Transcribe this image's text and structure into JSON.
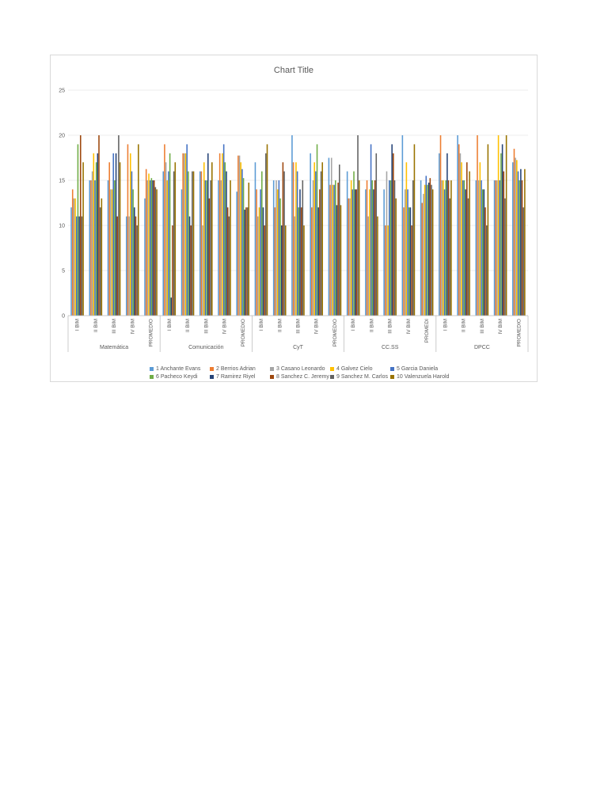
{
  "chart_data": {
    "type": "bar",
    "title": "Chart Title",
    "ylim": [
      0,
      25
    ],
    "yticks": [
      0,
      5,
      10,
      15,
      20,
      25
    ],
    "grid": true,
    "legend_position": "bottom",
    "groups": [
      {
        "name": "Matemática",
        "categories": [
          "I BIM",
          "II BIM",
          "III BIM",
          "IV BIM",
          "PROMEDIO"
        ]
      },
      {
        "name": "Comunicación",
        "categories": [
          "I BIM",
          "II BIM",
          "III BIM",
          "IV BIM",
          "PROMEDIO"
        ]
      },
      {
        "name": "CyT",
        "categories": [
          "I BIM",
          "II BIM",
          "III BIM",
          "IV BIM",
          "PROMEDIO"
        ]
      },
      {
        "name": "CC.SS",
        "categories": [
          "I BIM",
          "II BIM",
          "III BIM",
          "IV BIM",
          "PROMEDI"
        ]
      },
      {
        "name": "DPCC",
        "categories": [
          "I BIM",
          "II BIM",
          "III BIM",
          "IV BIM",
          "PROMEDIO"
        ]
      }
    ],
    "series": [
      {
        "name": "1 Anchante Evans",
        "color": "#5b9bd5",
        "values": [
          12,
          15,
          15,
          11,
          13,
          16,
          14,
          16,
          15,
          13.75,
          17,
          15,
          20,
          18,
          17.5,
          16,
          14,
          14,
          20,
          15,
          18,
          20,
          15,
          15,
          17
        ]
      },
      {
        "name": "2 Berrios Adrian",
        "color": "#ed7d31",
        "values": [
          14,
          15,
          17,
          19,
          16.25,
          19,
          18,
          16,
          18,
          17.75,
          14,
          12,
          17,
          12,
          14.5,
          13,
          15,
          10,
          12,
          12.5,
          20,
          19,
          20,
          15,
          18.5
        ]
      },
      {
        "name": "3 Casano Leonardo",
        "color": "#a5a5a5",
        "values": [
          13,
          16,
          14,
          11,
          15,
          17,
          18,
          10,
          15,
          17.75,
          11,
          15,
          11,
          15,
          17.5,
          13,
          11,
          16,
          14,
          13.5,
          15,
          18,
          15,
          15,
          17.5
        ]
      },
      {
        "name": "4 Galvez Cielo",
        "color": "#ffc000",
        "values": [
          13,
          18,
          14,
          18,
          15.75,
          15,
          18,
          17,
          18,
          17,
          12,
          14,
          17,
          17,
          14.5,
          15,
          14,
          10,
          17,
          14.5,
          15,
          17,
          17,
          20,
          17.25
        ]
      },
      {
        "name": "5 Garcia Daniela",
        "color": "#4472c4",
        "values": [
          11,
          15,
          18,
          16,
          15,
          16,
          19,
          15,
          19,
          16.25,
          14,
          15,
          16,
          16,
          14.5,
          14,
          19,
          15,
          14,
          15.5,
          14,
          15,
          15,
          15,
          16
        ]
      },
      {
        "name": "6 Pacheco Keydi",
        "color": "#70ad47",
        "values": [
          19,
          17,
          15,
          14,
          15.25,
          18,
          16,
          15,
          17,
          15.25,
          16,
          13,
          12,
          19,
          15,
          16,
          15,
          15,
          12,
          14.5,
          15,
          15,
          14,
          18,
          15
        ]
      },
      {
        "name": "7 Ramirez Riyel",
        "color": "#264478",
        "values": [
          11,
          18,
          18,
          12,
          15,
          2,
          11,
          18,
          16,
          11.75,
          12,
          10,
          14,
          12,
          12.25,
          14,
          14,
          19,
          12,
          14.75,
          18,
          14,
          14,
          19,
          16.25
        ]
      },
      {
        "name": "8 Sanchez C. Jeremy",
        "color": "#9e480e",
        "values": [
          20,
          20,
          11,
          11,
          15,
          10,
          10,
          13,
          12,
          12,
          10,
          17,
          12,
          14,
          14.75,
          14,
          15,
          18,
          10,
          15.25,
          15,
          17,
          12,
          16,
          15
        ]
      },
      {
        "name": "9 Sanchez M. Carlos",
        "color": "#636363",
        "values": [
          11,
          12,
          20,
          10,
          14.25,
          16,
          16,
          15,
          11,
          12,
          18,
          16,
          15,
          16,
          16.75,
          20,
          18,
          15,
          15,
          14.5,
          13,
          13,
          10,
          13,
          12
        ]
      },
      {
        "name": "10 Valenzuela Harold",
        "color": "#997300",
        "values": [
          17,
          13,
          17,
          19,
          14,
          17,
          16,
          17,
          15,
          14.75,
          19,
          10,
          10,
          17,
          12.25,
          15,
          11,
          13,
          19,
          14,
          15,
          16,
          19,
          20,
          16.25
        ]
      }
    ]
  }
}
